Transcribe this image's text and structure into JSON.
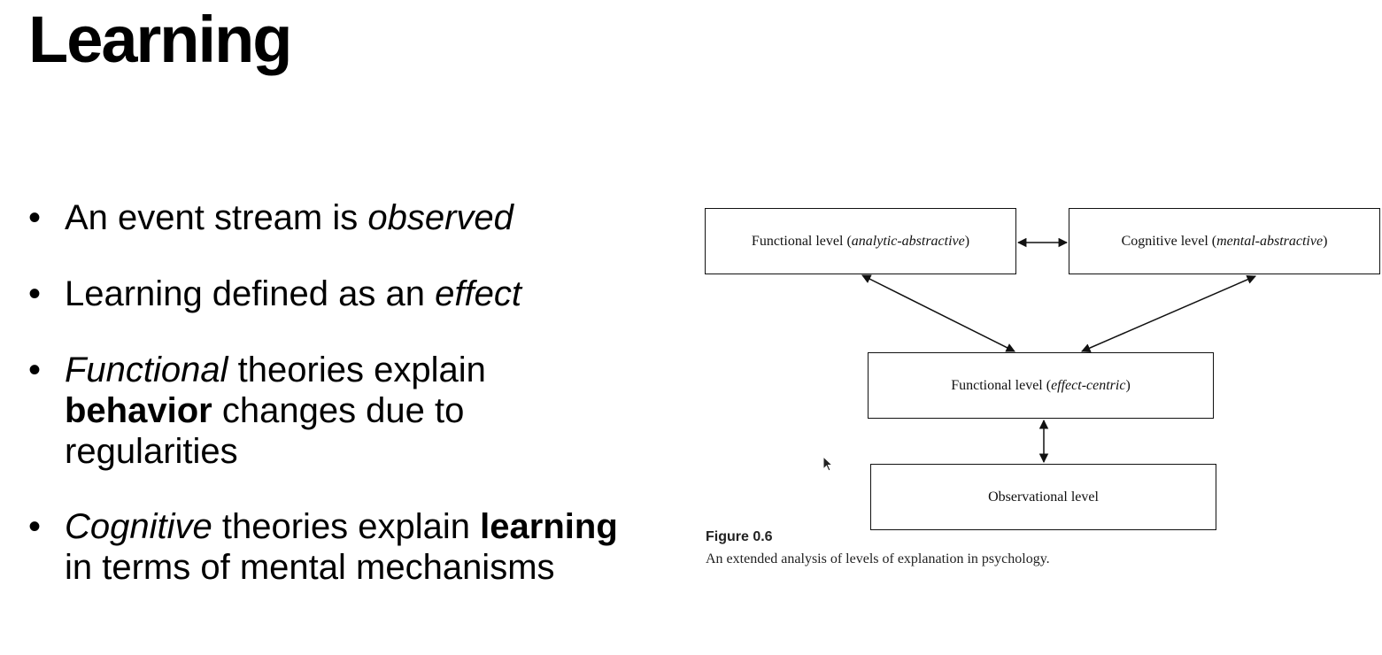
{
  "slide": {
    "title": "Learning"
  },
  "bullets": [
    {
      "dot": "•",
      "parts": [
        {
          "t": "An event stream is "
        },
        {
          "t": "observed",
          "s": "i"
        }
      ]
    },
    {
      "dot": "•",
      "parts": [
        {
          "t": "Learning defined as an "
        },
        {
          "t": "effect",
          "s": "i"
        }
      ]
    },
    {
      "dot": "•",
      "parts": [
        {
          "t": "Functional",
          "s": "i"
        },
        {
          "t": " theories explain "
        },
        {
          "t": "behavior",
          "s": "b"
        },
        {
          "t": " changes due to regularities"
        }
      ]
    },
    {
      "dot": "•",
      "parts": [
        {
          "t": "Cognitive",
          "s": "i"
        },
        {
          "t": " theories explain "
        },
        {
          "t": "learning",
          "s": "b"
        },
        {
          "t": " in terms of mental mechanisms"
        }
      ]
    }
  ],
  "diagram": {
    "boxes": {
      "analytic": {
        "prefix": "Functional level (",
        "em": "analytic-abstractive",
        "suffix": ")"
      },
      "cognitive": {
        "prefix": "Cognitive level (",
        "em": "mental-abstractive",
        "suffix": ")"
      },
      "effect": {
        "prefix": "Functional level (",
        "em": "effect-centric",
        "suffix": ")"
      },
      "observational": {
        "prefix": "Observational level",
        "em": "",
        "suffix": ""
      }
    },
    "figure_label": "Figure 0.6",
    "figure_caption": "An extended analysis of levels of explanation in psychology."
  }
}
